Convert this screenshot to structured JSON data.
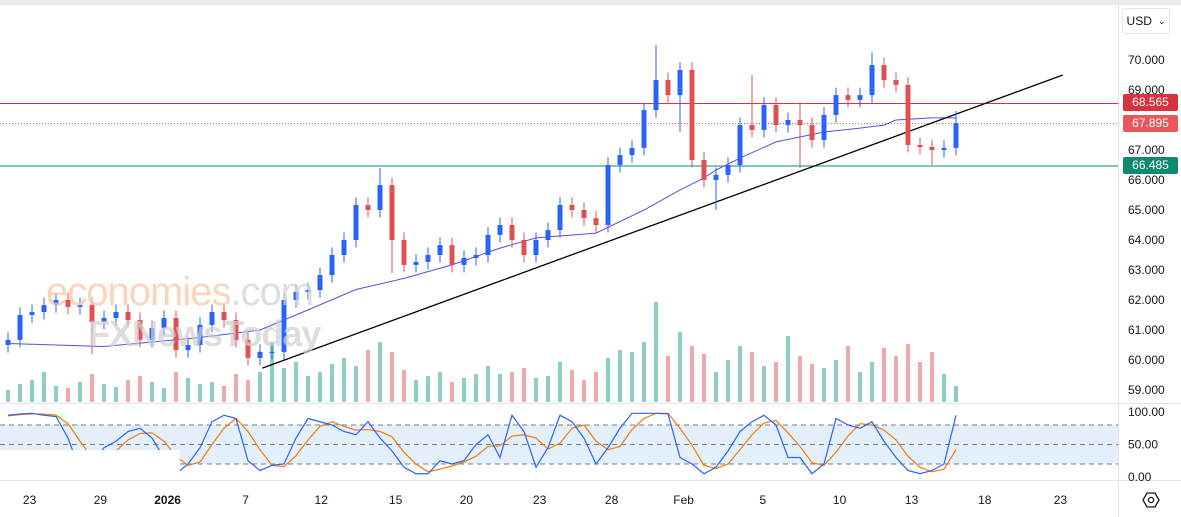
{
  "currency_selector": {
    "label": "USD",
    "icon": "chevron-down-icon"
  },
  "watermark": {
    "brand1": "economies",
    "brand1_suffix": ".com",
    "brand2": "FXNewsToday"
  },
  "colors": {
    "up": "#2962ff",
    "down": "#e05050",
    "vol_up": "#8fcfc3",
    "vol_down": "#f0a8a8",
    "ma": "#5b4de8",
    "trendline": "#000000",
    "resistance": "#d6323f",
    "current": "#e8575a",
    "support": "#0f8a72",
    "stoch_k": "#2962ff",
    "stoch_d": "#f57c00",
    "stoch_band": "#e3f0fc"
  },
  "price_axis": {
    "ticks": [
      "70.000",
      "69.000",
      "67.000",
      "66.000",
      "65.000",
      "64.000",
      "63.000",
      "62.000",
      "61.000",
      "60.000",
      "59.000"
    ]
  },
  "osc_axis": {
    "ticks": [
      "100.00",
      "50.00",
      "0.00"
    ]
  },
  "levels": [
    {
      "name": "resistance",
      "price": 68.565,
      "label": "68.565",
      "style": "solid"
    },
    {
      "name": "current-price",
      "price": 67.895,
      "label": "67.895",
      "style": "dotted"
    },
    {
      "name": "support",
      "price": 66.485,
      "label": "66.485",
      "style": "solid"
    }
  ],
  "chart_data": {
    "type": "candlestick",
    "ylim": [
      58.6,
      70.9
    ],
    "grid": false,
    "x_ticks": [
      {
        "label": "23",
        "index": 1.8
      },
      {
        "label": "29",
        "index": 7.7
      },
      {
        "label": "2026",
        "index": 13.3,
        "bold": true
      },
      {
        "label": "7",
        "index": 19.8
      },
      {
        "label": "12",
        "index": 26.1
      },
      {
        "label": "15",
        "index": 32.3
      },
      {
        "label": "20",
        "index": 38.2
      },
      {
        "label": "23",
        "index": 44.3
      },
      {
        "label": "28",
        "index": 50.3
      },
      {
        "label": "Feb",
        "index": 56.3
      },
      {
        "label": "5",
        "index": 62.9
      },
      {
        "label": "10",
        "index": 69.3
      },
      {
        "label": "13",
        "index": 75.3
      },
      {
        "label": "18",
        "index": 81.4
      },
      {
        "label": "23",
        "index": 87.7
      }
    ],
    "ohlc": [
      [
        60.5,
        60.92,
        60.25,
        60.67
      ],
      [
        60.67,
        61.75,
        60.42,
        61.5
      ],
      [
        61.5,
        61.85,
        61.25,
        61.6
      ],
      [
        61.6,
        62.08,
        61.35,
        61.83
      ],
      [
        61.83,
        62.25,
        61.58,
        62.0
      ],
      [
        62.0,
        62.25,
        61.52,
        61.77
      ],
      [
        61.77,
        62.08,
        61.52,
        61.83
      ],
      [
        61.83,
        62.08,
        60.2,
        61.27
      ],
      [
        61.27,
        61.65,
        61.02,
        61.4
      ],
      [
        61.4,
        61.85,
        61.15,
        61.6
      ],
      [
        61.6,
        61.85,
        61.08,
        61.33
      ],
      [
        61.33,
        61.58,
        60.42,
        60.67
      ],
      [
        60.67,
        61.32,
        60.42,
        61.07
      ],
      [
        61.07,
        61.65,
        60.82,
        61.4
      ],
      [
        61.4,
        61.65,
        60.08,
        60.33
      ],
      [
        60.33,
        60.75,
        60.08,
        60.5
      ],
      [
        60.5,
        61.42,
        60.25,
        61.17
      ],
      [
        61.17,
        61.85,
        60.92,
        61.6
      ],
      [
        61.6,
        61.85,
        61.08,
        61.33
      ],
      [
        61.33,
        61.58,
        60.42,
        60.67
      ],
      [
        60.67,
        60.92,
        59.82,
        60.07
      ],
      [
        60.07,
        60.52,
        59.82,
        60.27
      ],
      [
        60.27,
        60.52,
        60.02,
        60.27
      ],
      [
        60.27,
        62.25,
        60.02,
        62.0
      ],
      [
        62.0,
        62.52,
        61.75,
        62.27
      ],
      [
        62.27,
        62.58,
        62.02,
        62.33
      ],
      [
        62.33,
        63.08,
        62.08,
        62.83
      ],
      [
        62.83,
        63.75,
        62.58,
        63.5
      ],
      [
        63.5,
        64.25,
        63.25,
        64.0
      ],
      [
        64.0,
        65.42,
        63.75,
        65.17
      ],
      [
        65.17,
        65.42,
        64.75,
        65.0
      ],
      [
        65.0,
        66.4,
        64.75,
        65.83
      ],
      [
        65.83,
        66.08,
        62.9,
        64.0
      ],
      [
        64.0,
        64.25,
        62.92,
        63.17
      ],
      [
        63.17,
        63.52,
        62.92,
        63.27
      ],
      [
        63.27,
        63.75,
        63.02,
        63.5
      ],
      [
        63.5,
        64.08,
        63.25,
        63.83
      ],
      [
        63.83,
        64.08,
        62.92,
        63.17
      ],
      [
        63.17,
        63.65,
        62.92,
        63.4
      ],
      [
        63.4,
        63.75,
        63.15,
        63.5
      ],
      [
        63.5,
        64.42,
        63.25,
        64.17
      ],
      [
        64.17,
        64.75,
        63.92,
        64.5
      ],
      [
        64.5,
        64.75,
        63.75,
        64.0
      ],
      [
        64.0,
        64.25,
        63.25,
        63.5
      ],
      [
        63.5,
        64.25,
        63.25,
        64.0
      ],
      [
        64.0,
        64.58,
        63.75,
        64.33
      ],
      [
        64.33,
        65.42,
        64.08,
        65.17
      ],
      [
        65.17,
        65.42,
        64.75,
        65.0
      ],
      [
        65.0,
        65.25,
        64.48,
        64.73
      ],
      [
        64.73,
        64.98,
        64.25,
        64.5
      ],
      [
        64.5,
        66.75,
        64.25,
        66.5
      ],
      [
        66.5,
        67.08,
        66.25,
        66.83
      ],
      [
        66.83,
        67.32,
        66.58,
        67.07
      ],
      [
        67.07,
        68.58,
        66.82,
        68.33
      ],
      [
        68.33,
        70.5,
        68.08,
        69.33
      ],
      [
        69.33,
        69.58,
        68.58,
        68.83
      ],
      [
        68.83,
        69.92,
        67.6,
        69.67
      ],
      [
        69.67,
        69.92,
        66.42,
        66.67
      ],
      [
        66.67,
        66.92,
        65.75,
        66.0
      ],
      [
        66.0,
        66.42,
        65.0,
        66.17
      ],
      [
        66.17,
        66.75,
        65.92,
        66.5
      ],
      [
        66.5,
        68.08,
        66.25,
        67.83
      ],
      [
        67.83,
        69.5,
        67.42,
        67.67
      ],
      [
        67.67,
        68.75,
        67.42,
        68.5
      ],
      [
        68.5,
        68.75,
        67.58,
        67.83
      ],
      [
        67.83,
        68.25,
        67.58,
        68.0
      ],
      [
        68.0,
        68.6,
        66.4,
        67.83
      ],
      [
        67.83,
        68.08,
        67.08,
        67.33
      ],
      [
        67.33,
        68.42,
        67.08,
        68.17
      ],
      [
        68.17,
        69.08,
        67.92,
        68.83
      ],
      [
        68.83,
        69.08,
        68.42,
        68.67
      ],
      [
        68.67,
        69.08,
        68.42,
        68.83
      ],
      [
        68.83,
        70.25,
        68.58,
        69.83
      ],
      [
        69.83,
        70.08,
        69.08,
        69.33
      ],
      [
        69.33,
        69.58,
        68.92,
        69.17
      ],
      [
        69.17,
        69.42,
        66.92,
        67.17
      ],
      [
        67.17,
        67.42,
        66.85,
        67.1
      ],
      [
        67.1,
        67.35,
        66.5,
        67.0
      ],
      [
        67.0,
        67.32,
        66.75,
        67.07
      ],
      [
        67.07,
        68.3,
        66.82,
        67.895
      ]
    ],
    "volume": [
      12,
      18,
      22,
      30,
      16,
      14,
      20,
      28,
      18,
      15,
      22,
      26,
      20,
      14,
      30,
      24,
      18,
      20,
      16,
      28,
      22,
      30,
      60,
      34,
      40,
      26,
      30,
      38,
      44,
      36,
      52,
      60,
      50,
      32,
      22,
      26,
      30,
      20,
      24,
      28,
      36,
      28,
      30,
      34,
      24,
      26,
      40,
      32,
      22,
      30,
      44,
      52,
      50,
      60,
      100,
      46,
      70,
      56,
      48,
      30,
      42,
      56,
      50,
      36,
      40,
      66,
      46,
      38,
      34,
      42,
      56,
      30,
      40,
      54,
      46,
      58,
      40,
      50,
      28,
      16
    ],
    "ma": [
      [
        0,
        60.55
      ],
      [
        8,
        60.45
      ],
      [
        16,
        60.75
      ],
      [
        21,
        61.0
      ],
      [
        24,
        61.5
      ],
      [
        29,
        62.35
      ],
      [
        33,
        62.72
      ],
      [
        37,
        63.17
      ],
      [
        41,
        63.73
      ],
      [
        44,
        64.07
      ],
      [
        49,
        64.23
      ],
      [
        53,
        65.0
      ],
      [
        56,
        65.67
      ],
      [
        58,
        66.07
      ],
      [
        59,
        66.33
      ],
      [
        61,
        66.73
      ],
      [
        64,
        67.27
      ],
      [
        68,
        67.6
      ],
      [
        71,
        67.73
      ],
      [
        73,
        67.83
      ],
      [
        74,
        68.0
      ],
      [
        77,
        68.07
      ],
      [
        79,
        68.07
      ]
    ],
    "trendline": [
      [
        21.2,
        59.73
      ],
      [
        87.9,
        69.5
      ]
    ],
    "stochastic": {
      "ylim": [
        0,
        100
      ],
      "upper_band": 80,
      "middle": 50,
      "lower_band": 20,
      "k": [
        95,
        97,
        98,
        95,
        93,
        60,
        10,
        20,
        45,
        55,
        70,
        75,
        60,
        30,
        5,
        20,
        45,
        85,
        95,
        90,
        25,
        10,
        18,
        20,
        60,
        90,
        85,
        80,
        70,
        65,
        85,
        60,
        40,
        15,
        5,
        5,
        25,
        20,
        25,
        50,
        65,
        30,
        95,
        70,
        15,
        45,
        95,
        85,
        60,
        20,
        45,
        75,
        98,
        98,
        98,
        97,
        30,
        20,
        5,
        15,
        40,
        70,
        85,
        95,
        80,
        30,
        30,
        5,
        20,
        90,
        80,
        75,
        85,
        55,
        30,
        10,
        5,
        10,
        20,
        95
      ],
      "d": [
        94,
        96,
        97,
        97,
        95,
        82,
        55,
        30,
        25,
        40,
        57,
        67,
        68,
        55,
        32,
        18,
        23,
        50,
        75,
        90,
        70,
        42,
        18,
        16,
        33,
        57,
        78,
        85,
        78,
        72,
        73,
        70,
        62,
        38,
        20,
        8,
        12,
        17,
        23,
        32,
        47,
        48,
        63,
        65,
        60,
        43,
        52,
        75,
        80,
        55,
        42,
        47,
        73,
        90,
        98,
        98,
        75,
        49,
        18,
        13,
        20,
        42,
        65,
        83,
        87,
        68,
        47,
        22,
        18,
        38,
        63,
        82,
        80,
        72,
        57,
        32,
        15,
        8,
        12,
        42
      ]
    }
  }
}
